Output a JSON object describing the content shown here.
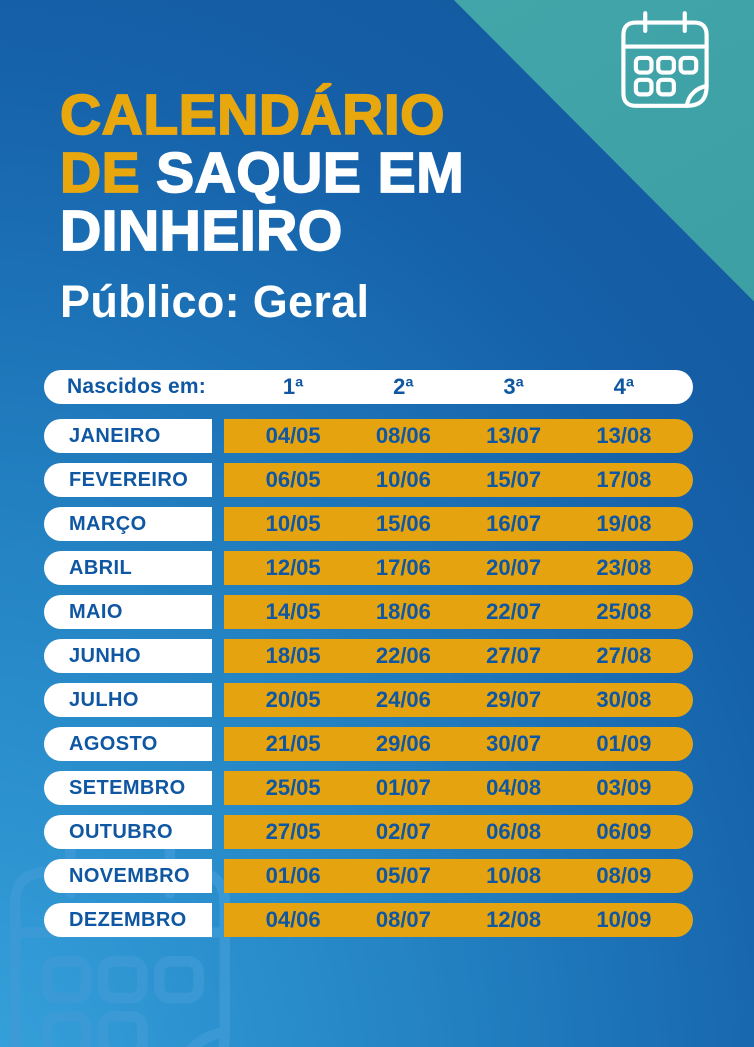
{
  "title": {
    "line1": "CALENDÁRIO",
    "line2_accent": "DE",
    "line2_rest": "SAQUE EM",
    "line3": "DINHEIRO",
    "subtitle": "Público: Geral"
  },
  "table": {
    "row_label": "Nascidos em:",
    "columns": [
      "1ª",
      "2ª",
      "3ª",
      "4ª"
    ],
    "months": [
      {
        "name": "JANEIRO",
        "dates": [
          "04/05",
          "08/06",
          "13/07",
          "13/08"
        ]
      },
      {
        "name": "FEVEREIRO",
        "dates": [
          "06/05",
          "10/06",
          "15/07",
          "17/08"
        ]
      },
      {
        "name": "MARÇO",
        "dates": [
          "10/05",
          "15/06",
          "16/07",
          "19/08"
        ]
      },
      {
        "name": "ABRIL",
        "dates": [
          "12/05",
          "17/06",
          "20/07",
          "23/08"
        ]
      },
      {
        "name": "MAIO",
        "dates": [
          "14/05",
          "18/06",
          "22/07",
          "25/08"
        ]
      },
      {
        "name": "JUNHO",
        "dates": [
          "18/05",
          "22/06",
          "27/07",
          "27/08"
        ]
      },
      {
        "name": "JULHO",
        "dates": [
          "20/05",
          "24/06",
          "29/07",
          "30/08"
        ]
      },
      {
        "name": "AGOSTO",
        "dates": [
          "21/05",
          "29/06",
          "30/07",
          "01/09"
        ]
      },
      {
        "name": "SETEMBRO",
        "dates": [
          "25/05",
          "01/07",
          "04/08",
          "03/09"
        ]
      },
      {
        "name": "OUTUBRO",
        "dates": [
          "27/05",
          "02/07",
          "06/08",
          "06/09"
        ]
      },
      {
        "name": "NOVEMBRO",
        "dates": [
          "01/06",
          "05/07",
          "10/08",
          "08/09"
        ]
      },
      {
        "name": "DEZEMBRO",
        "dates": [
          "04/06",
          "08/07",
          "12/08",
          "10/09"
        ]
      }
    ]
  },
  "icons": {
    "top_right": "calendar-icon",
    "bottom_left_watermark": "calendar-watermark-icon"
  },
  "colors": {
    "accent_yellow": "#E9A70E",
    "pill_orange": "#E5A30F",
    "text_blue": "#0F57A2",
    "teal_corner": "#3A9EA3",
    "bg_light": "#37A3DD",
    "bg_dark": "#1560A9",
    "pill_white": "#FFFFFF"
  },
  "chart_data": {
    "type": "table",
    "title": "CALENDÁRIO DE SAQUE EM DINHEIRO — Público: Geral",
    "row_header": "Nascidos em:",
    "columns": [
      "1ª",
      "2ª",
      "3ª",
      "4ª"
    ],
    "rows": [
      [
        "JANEIRO",
        "04/05",
        "08/06",
        "13/07",
        "13/08"
      ],
      [
        "FEVEREIRO",
        "06/05",
        "10/06",
        "15/07",
        "17/08"
      ],
      [
        "MARÇO",
        "10/05",
        "15/06",
        "16/07",
        "19/08"
      ],
      [
        "ABRIL",
        "12/05",
        "17/06",
        "20/07",
        "23/08"
      ],
      [
        "MAIO",
        "14/05",
        "18/06",
        "22/07",
        "25/08"
      ],
      [
        "JUNHO",
        "18/05",
        "22/06",
        "27/07",
        "27/08"
      ],
      [
        "JULHO",
        "20/05",
        "24/06",
        "29/07",
        "30/08"
      ],
      [
        "AGOSTO",
        "21/05",
        "29/06",
        "30/07",
        "01/09"
      ],
      [
        "SETEMBRO",
        "25/05",
        "01/07",
        "04/08",
        "03/09"
      ],
      [
        "OUTUBRO",
        "27/05",
        "02/07",
        "06/08",
        "06/09"
      ],
      [
        "NOVEMBRO",
        "01/06",
        "05/07",
        "10/08",
        "08/09"
      ],
      [
        "DEZEMBRO",
        "04/06",
        "08/07",
        "12/08",
        "10/09"
      ]
    ]
  }
}
